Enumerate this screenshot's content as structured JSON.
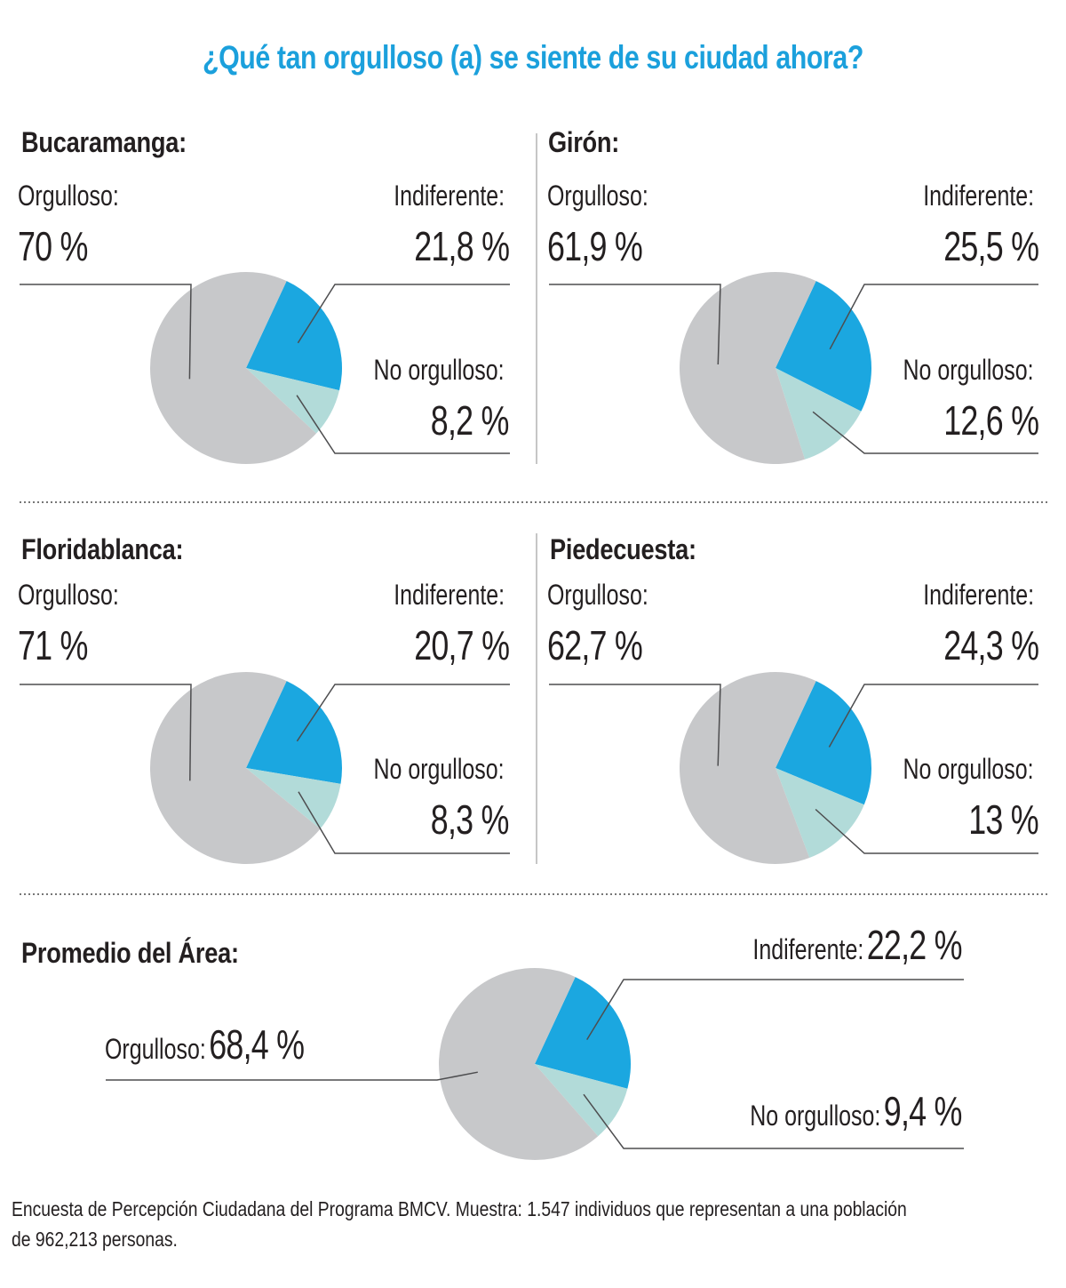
{
  "title": "¿Qué tan orgulloso (a) se siente de su ciudad ahora?",
  "colors": {
    "orgulloso": "#c7c8ca",
    "indiferente": "#1ba7e0",
    "no_orgulloso": "#b2dbd9",
    "title": "#1ba0dc",
    "leader": "#4d4d4f"
  },
  "chart_data": [
    {
      "type": "pie",
      "title": "Bucaramanga:",
      "categories": [
        "Orgulloso:",
        "Indiferente:",
        "No orgulloso:"
      ],
      "values": [
        70,
        21.8,
        8.2
      ],
      "value_labels": [
        "70 %",
        "21,8 %",
        "8,2 %"
      ]
    },
    {
      "type": "pie",
      "title": "Girón:",
      "categories": [
        "Orgulloso:",
        "Indiferente:",
        "No orgulloso:"
      ],
      "values": [
        61.9,
        25.5,
        12.6
      ],
      "value_labels": [
        "61,9 %",
        "25,5 %",
        "12,6 %"
      ]
    },
    {
      "type": "pie",
      "title": "Floridablanca:",
      "categories": [
        "Orgulloso:",
        "Indiferente:",
        "No orgulloso:"
      ],
      "values": [
        71,
        20.7,
        8.3
      ],
      "value_labels": [
        "71 %",
        "20,7 %",
        "8,3 %"
      ]
    },
    {
      "type": "pie",
      "title": "Piedecuesta:",
      "categories": [
        "Orgulloso:",
        "Indiferente:",
        "No orgulloso:"
      ],
      "values": [
        62.7,
        24.3,
        13
      ],
      "value_labels": [
        "62,7 %",
        "24,3 %",
        "13 %"
      ]
    },
    {
      "type": "pie",
      "title": "Promedio del Área:",
      "categories": [
        "Orgulloso:",
        "Indiferente:",
        "No orgulloso:"
      ],
      "values": [
        68.4,
        22.2,
        9.4
      ],
      "value_labels": [
        "68,4 %",
        "22,2 %",
        "9,4 %"
      ]
    }
  ],
  "footnote": "Encuesta de Percepción Ciudadana del Programa BMCV. Muestra: 1.547  individuos que representan a una población de 962,213 personas."
}
